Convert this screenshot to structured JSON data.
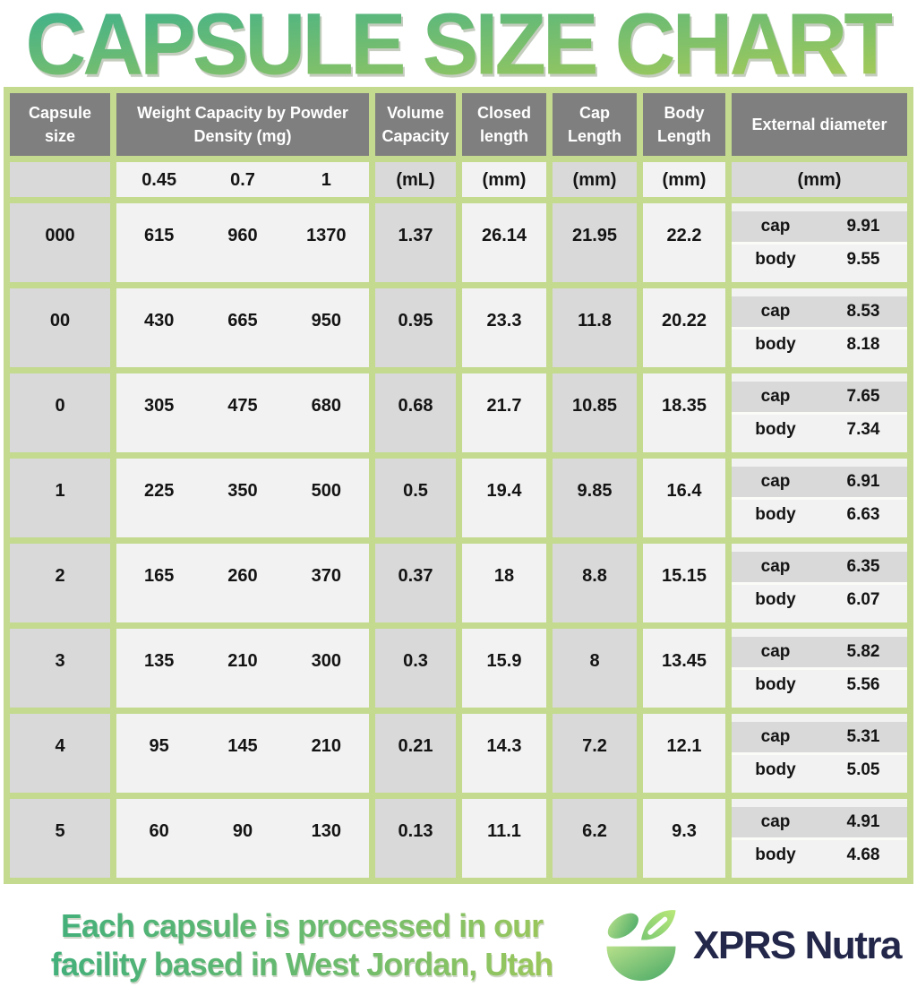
{
  "title": "CAPSULE SIZE CHART",
  "table": {
    "headers": {
      "capsule_size": "Capsule size",
      "weight_capacity": "Weight Capacity by Powder Density (mg)",
      "volume_capacity": "Volume Capacity",
      "closed_length": "Closed length",
      "cap_length": "Cap Length",
      "body_length": "Body Length",
      "external_diameter": "External diameter"
    },
    "units": {
      "densities": [
        "0.45",
        "0.7",
        "1"
      ],
      "volume": "(mL)",
      "closed": "(mm)",
      "cap": "(mm)",
      "body": "(mm)",
      "external": "(mm)"
    },
    "ext_labels": {
      "cap": "cap",
      "body": "body"
    },
    "rows": [
      {
        "size": "000",
        "weights": [
          "615",
          "960",
          "1370"
        ],
        "volume": "1.37",
        "closed": "26.14",
        "cap_len": "21.95",
        "body_len": "22.2",
        "ext_cap": "9.91",
        "ext_body": "9.55"
      },
      {
        "size": "00",
        "weights": [
          "430",
          "665",
          "950"
        ],
        "volume": "0.95",
        "closed": "23.3",
        "cap_len": "11.8",
        "body_len": "20.22",
        "ext_cap": "8.53",
        "ext_body": "8.18"
      },
      {
        "size": "0",
        "weights": [
          "305",
          "475",
          "680"
        ],
        "volume": "0.68",
        "closed": "21.7",
        "cap_len": "10.85",
        "body_len": "18.35",
        "ext_cap": "7.65",
        "ext_body": "7.34"
      },
      {
        "size": "1",
        "weights": [
          "225",
          "350",
          "500"
        ],
        "volume": "0.5",
        "closed": "19.4",
        "cap_len": "9.85",
        "body_len": "16.4",
        "ext_cap": "6.91",
        "ext_body": "6.63"
      },
      {
        "size": "2",
        "weights": [
          "165",
          "260",
          "370"
        ],
        "volume": "0.37",
        "closed": "18",
        "cap_len": "8.8",
        "body_len": "15.15",
        "ext_cap": "6.35",
        "ext_body": "6.07"
      },
      {
        "size": "3",
        "weights": [
          "135",
          "210",
          "300"
        ],
        "volume": "0.3",
        "closed": "15.9",
        "cap_len": "8",
        "body_len": "13.45",
        "ext_cap": "5.82",
        "ext_body": "5.56"
      },
      {
        "size": "4",
        "weights": [
          "95",
          "145",
          "210"
        ],
        "volume": "0.21",
        "closed": "14.3",
        "cap_len": "7.2",
        "body_len": "12.1",
        "ext_cap": "5.31",
        "ext_body": "5.05"
      },
      {
        "size": "5",
        "weights": [
          "60",
          "90",
          "130"
        ],
        "volume": "0.13",
        "closed": "11.1",
        "cap_len": "6.2",
        "body_len": "9.3",
        "ext_cap": "4.91",
        "ext_body": "4.68"
      }
    ]
  },
  "footer": {
    "tagline_line1": "Each capsule is processed in our",
    "tagline_line2": "facility based in West Jordan, Utah",
    "brand": "XPRS Nutra"
  },
  "colors": {
    "border_green": "#c3da8f",
    "header_gray": "#7f7f7f",
    "cell_gray": "#d9d9d9",
    "cell_light": "#f2f2f2",
    "title_green_top": "#3fb18a",
    "title_green_bottom": "#a6cb58",
    "brand_navy": "#23274a"
  },
  "chart_data": {
    "type": "table",
    "title": "CAPSULE SIZE CHART",
    "columns": [
      "Capsule size",
      "Weight Capacity @ 0.45 density (mg)",
      "Weight Capacity @ 0.7 density (mg)",
      "Weight Capacity @ 1 density (mg)",
      "Volume Capacity (mL)",
      "Closed length (mm)",
      "Cap Length (mm)",
      "Body Length (mm)",
      "External diameter cap (mm)",
      "External diameter body (mm)"
    ],
    "rows": [
      [
        "000",
        615,
        960,
        1370,
        1.37,
        26.14,
        21.95,
        22.2,
        9.91,
        9.55
      ],
      [
        "00",
        430,
        665,
        950,
        0.95,
        23.3,
        11.8,
        20.22,
        8.53,
        8.18
      ],
      [
        "0",
        305,
        475,
        680,
        0.68,
        21.7,
        10.85,
        18.35,
        7.65,
        7.34
      ],
      [
        "1",
        225,
        350,
        500,
        0.5,
        19.4,
        9.85,
        16.4,
        6.91,
        6.63
      ],
      [
        "2",
        165,
        260,
        370,
        0.37,
        18,
        8.8,
        15.15,
        6.35,
        6.07
      ],
      [
        "3",
        135,
        210,
        300,
        0.3,
        15.9,
        8,
        13.45,
        5.82,
        5.56
      ],
      [
        "4",
        95,
        145,
        210,
        0.21,
        14.3,
        7.2,
        12.1,
        5.31,
        5.05
      ],
      [
        "5",
        60,
        90,
        130,
        0.13,
        11.1,
        6.2,
        9.3,
        4.91,
        4.68
      ]
    ]
  }
}
